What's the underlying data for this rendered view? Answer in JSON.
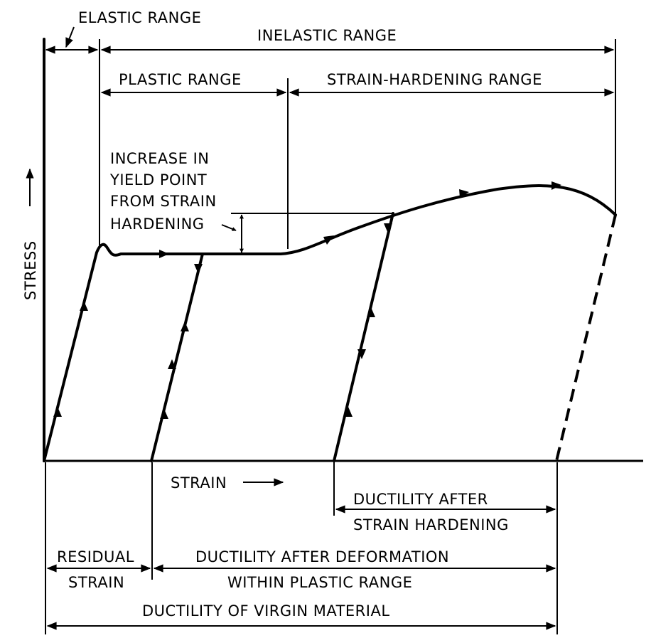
{
  "labels": {
    "elastic_range": "ELASTIC RANGE",
    "inelastic_range": "INELASTIC RANGE",
    "plastic_range": "PLASTIC RANGE",
    "strain_hardening_range": "STRAIN-HARDENING RANGE",
    "increase_yield": [
      "INCREASE IN",
      "YIELD POINT",
      "FROM STRAIN",
      "HARDENING"
    ],
    "stress_axis": "STRESS",
    "strain_axis": "STRAIN",
    "ductility_after_strain_hardening": [
      "DUCTILITY AFTER",
      "STRAIN HARDENING"
    ],
    "residual_strain": [
      "RESIDUAL",
      "STRAIN"
    ],
    "ductility_after_deformation": [
      "DUCTILITY AFTER DEFORMATION",
      "WITHIN PLASTIC RANGE"
    ],
    "ductility_virgin": "DUCTILITY OF VIRGIN MATERIAL"
  }
}
